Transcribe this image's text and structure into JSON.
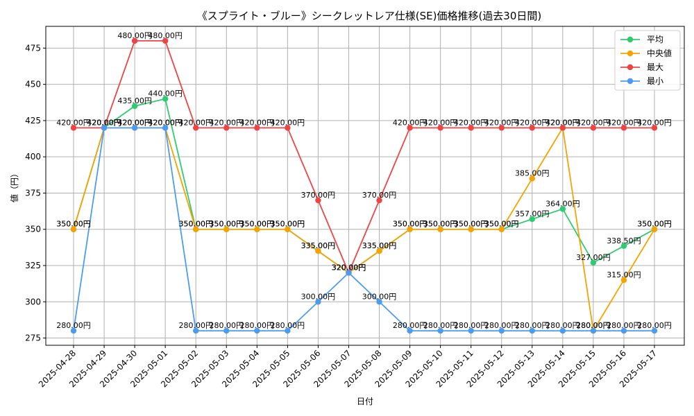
{
  "chart_data": {
    "type": "line",
    "title": "《スプライト・ブルー》シークレットレア仕様(SE)価格推移(過去30日間)",
    "xlabel": "日付",
    "ylabel": "値（円）",
    "ylim": [
      270,
      490
    ],
    "yticks": [
      275,
      300,
      325,
      350,
      375,
      400,
      425,
      450,
      475
    ],
    "grid": true,
    "legend_position": "top-right",
    "value_suffix": "円",
    "categories": [
      "2025-04-28",
      "2025-04-29",
      "2025-04-30",
      "2025-05-01",
      "2025-05-02",
      "2025-05-03",
      "2025-05-04",
      "2025-05-05",
      "2025-05-06",
      "2025-05-07",
      "2025-05-08",
      "2025-05-09",
      "2025-05-10",
      "2025-05-11",
      "2025-05-12",
      "2025-05-13",
      "2025-05-14",
      "2025-05-15",
      "2025-05-16",
      "2025-05-17"
    ],
    "series": [
      {
        "name": "平均",
        "color": "#2ecc71",
        "values": [
          350,
          420,
          435,
          440,
          350,
          350,
          350,
          350,
          335,
          320,
          335,
          350,
          350,
          350,
          350,
          357,
          364,
          327,
          338.5,
          350
        ]
      },
      {
        "name": "中央値",
        "color": "#f5a300",
        "values": [
          350,
          420,
          420,
          420,
          350,
          350,
          350,
          350,
          335,
          320,
          335,
          350,
          350,
          350,
          350,
          385,
          420,
          280,
          315,
          350
        ]
      },
      {
        "name": "最大",
        "color": "#ee4444",
        "values": [
          420,
          420,
          480,
          480,
          420,
          420,
          420,
          420,
          370,
          320,
          370,
          420,
          420,
          420,
          420,
          420,
          420,
          420,
          420,
          420
        ]
      },
      {
        "name": "最小",
        "color": "#4b9cf0",
        "values": [
          280,
          420,
          420,
          420,
          280,
          280,
          280,
          280,
          300,
          320,
          300,
          280,
          280,
          280,
          280,
          280,
          280,
          280,
          280,
          280
        ]
      }
    ]
  }
}
